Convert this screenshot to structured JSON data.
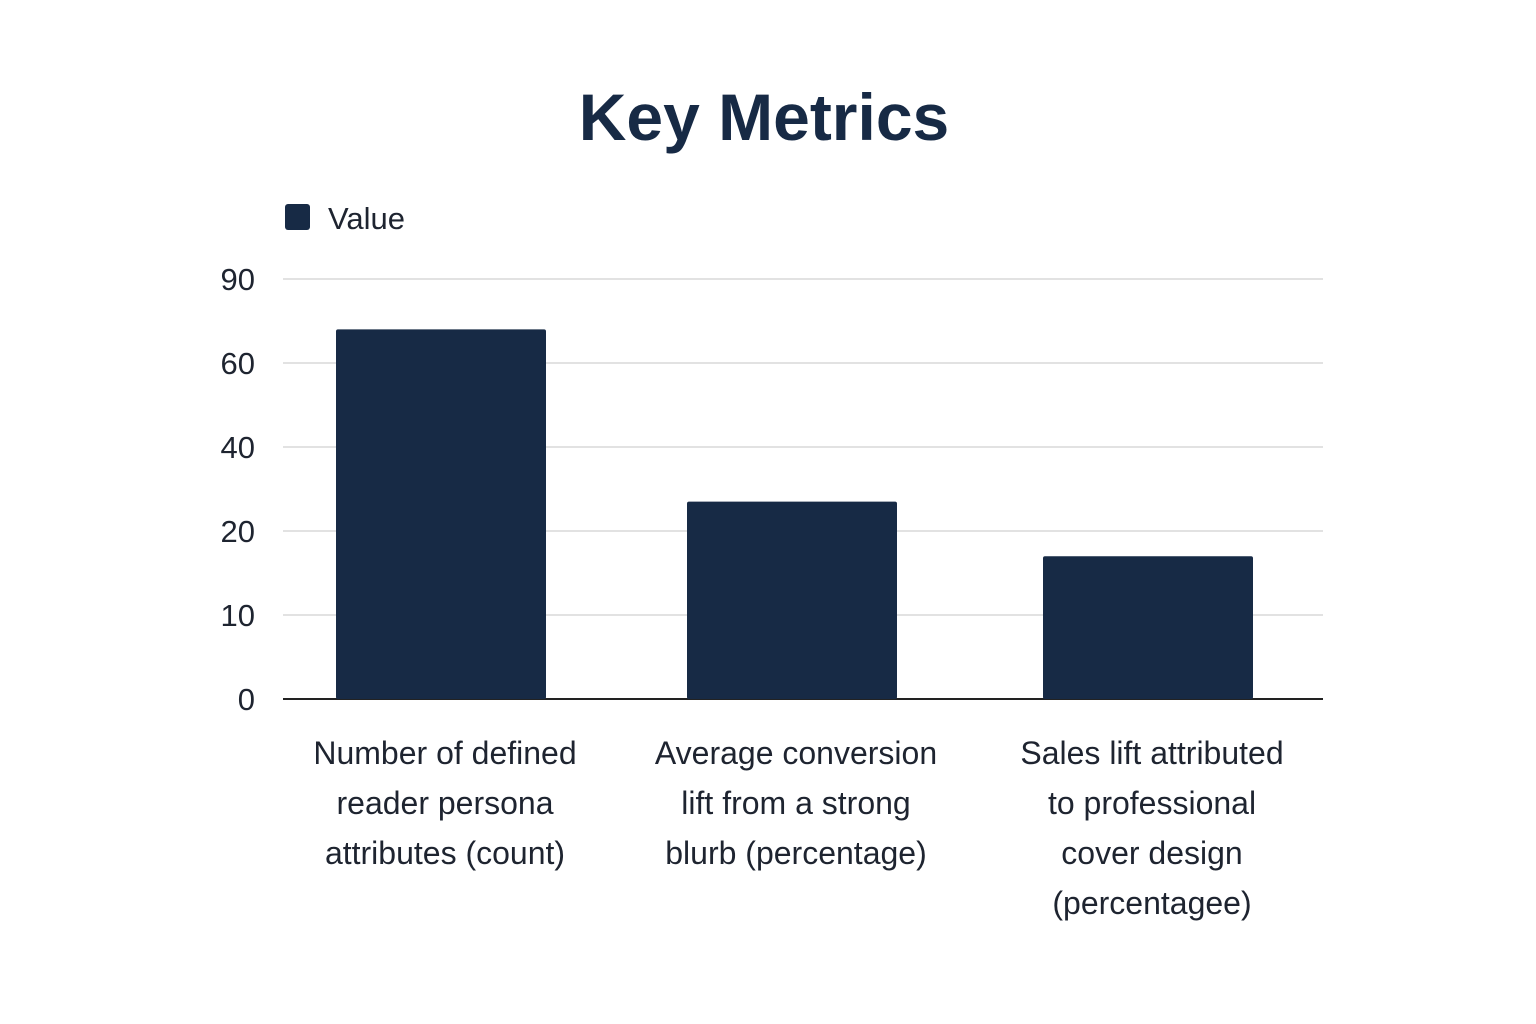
{
  "chart_data": {
    "type": "bar",
    "title": "Key Metrics",
    "legend": {
      "entries": [
        "Value"
      ],
      "placement": "top-left"
    },
    "categories": [
      [
        "Number of defined",
        "reader persona",
        "attributes (count)"
      ],
      [
        "Average conversion",
        "lift from a strong",
        "blurb (percentage)"
      ],
      [
        "Sales lift attributed",
        "to professional",
        "cover design",
        "(percentagee)"
      ]
    ],
    "series": [
      {
        "name": "Value",
        "values": [
          72,
          27,
          17
        ]
      }
    ],
    "yticks": [
      "0",
      "10",
      "20",
      "40",
      "60",
      "90"
    ],
    "ytick_values": [
      0,
      10,
      20,
      40,
      60,
      90
    ],
    "ylim": [
      0,
      90
    ],
    "grid": true,
    "xlabel": "",
    "ylabel": "",
    "colors": {
      "bar": "#172a45",
      "grid": "#d9d9d9",
      "axis": "#222222",
      "title": "#172a45"
    }
  }
}
